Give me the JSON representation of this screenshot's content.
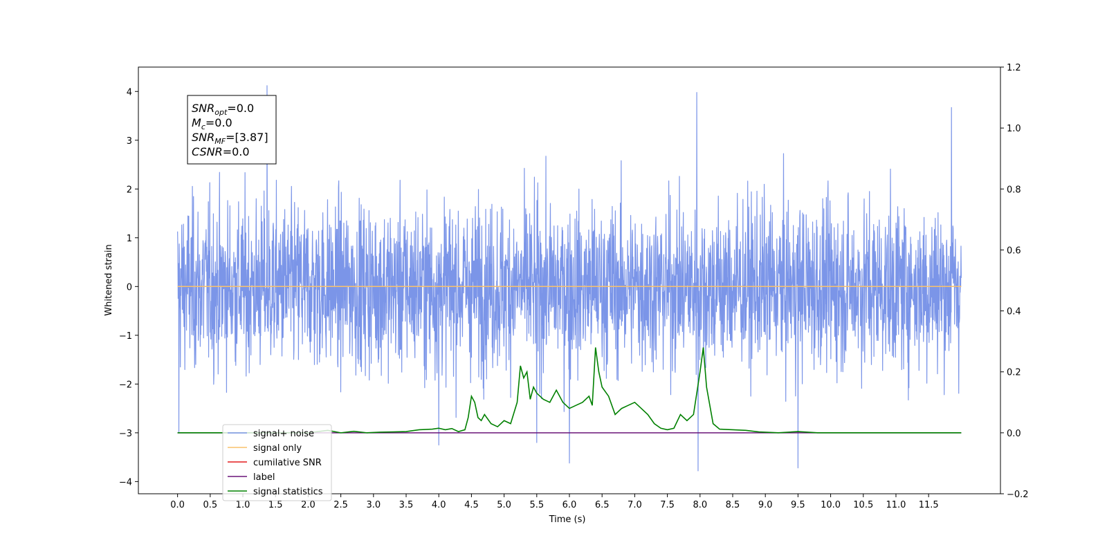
{
  "chart_data": {
    "type": "line",
    "title": "",
    "xlabel": "Time (s)",
    "ylabel": "Whitened strain",
    "xlim": [
      -0.6,
      12.6
    ],
    "ylim": [
      -4.25,
      4.5
    ],
    "y2lim": [
      -0.2,
      1.2
    ],
    "x_ticks": [
      0.0,
      0.5,
      1.0,
      1.5,
      2.0,
      2.5,
      3.0,
      3.5,
      4.0,
      4.5,
      5.0,
      5.5,
      6.0,
      6.5,
      7.0,
      7.5,
      8.0,
      8.5,
      9.0,
      9.5,
      10.0,
      10.5,
      11.0,
      11.5
    ],
    "x_tick_labels": [
      "0.0",
      "0.5",
      "1.0",
      "1.5",
      "2.0",
      "2.5",
      "3.0",
      "3.5",
      "4.0",
      "4.5",
      "5.0",
      "5.5",
      "6.0",
      "6.5",
      "7.0",
      "7.5",
      "8.0",
      "8.5",
      "9.0",
      "9.5",
      "10.0",
      "10.5",
      "11.0",
      "11.5"
    ],
    "y_ticks": [
      -4,
      -3,
      -2,
      -1,
      0,
      1,
      2,
      3,
      4
    ],
    "y_tick_labels": [
      "−4",
      "−3",
      "−2",
      "−1",
      "0",
      "1",
      "2",
      "3",
      "4"
    ],
    "y2_ticks": [
      -0.2,
      0.0,
      0.2,
      0.4,
      0.6,
      0.8,
      1.0,
      1.2
    ],
    "y2_tick_labels": [
      "−0.2",
      "0.0",
      "0.2",
      "0.4",
      "0.6",
      "0.8",
      "1.0",
      "1.2"
    ],
    "grid": false,
    "legend_position": "lower-left",
    "noise_series": {
      "name": "signal+ noise",
      "color": "#7b95e8",
      "x_range": [
        0.0,
        12.0
      ],
      "approx_sigma": 0.85,
      "notable_spikes": [
        {
          "x": 1.37,
          "y": 4.12
        },
        {
          "x": 7.95,
          "y": 3.98
        },
        {
          "x": 11.85,
          "y": 3.67
        },
        {
          "x": 6.0,
          "y": -3.62
        },
        {
          "x": 7.97,
          "y": -3.78
        },
        {
          "x": 9.5,
          "y": -3.72
        },
        {
          "x": 0.02,
          "y": -2.98
        },
        {
          "x": 4.0,
          "y": -3.25
        },
        {
          "x": 5.5,
          "y": -3.2
        }
      ]
    },
    "series": [
      {
        "name": "signal only",
        "color": "#f9c26c",
        "axis": "left",
        "x": [
          0.0,
          12.0
        ],
        "y": [
          0.0,
          0.0
        ]
      },
      {
        "name": "cumilative SNR",
        "color": "#e41a1c",
        "axis": "right",
        "x": [],
        "y": []
      },
      {
        "name": "label",
        "color": "#6a1478",
        "axis": "right",
        "x": [
          0.0,
          12.0
        ],
        "y": [
          0.0,
          0.0
        ]
      },
      {
        "name": "signal statistics",
        "color": "#008000",
        "axis": "right",
        "x": [
          0.0,
          2.0,
          2.3,
          2.5,
          2.7,
          2.9,
          3.1,
          3.3,
          3.5,
          3.7,
          3.9,
          4.0,
          4.1,
          4.2,
          4.3,
          4.4,
          4.45,
          4.5,
          4.55,
          4.6,
          4.65,
          4.7,
          4.8,
          4.9,
          5.0,
          5.1,
          5.2,
          5.25,
          5.3,
          5.35,
          5.4,
          5.45,
          5.5,
          5.55,
          5.6,
          5.7,
          5.8,
          5.9,
          6.0,
          6.1,
          6.2,
          6.3,
          6.35,
          6.4,
          6.45,
          6.5,
          6.6,
          6.7,
          6.8,
          6.9,
          7.0,
          7.1,
          7.2,
          7.3,
          7.4,
          7.5,
          7.6,
          7.7,
          7.8,
          7.9,
          8.0,
          8.05,
          8.1,
          8.2,
          8.3,
          8.5,
          8.7,
          8.9,
          9.2,
          9.5,
          9.8,
          10.0,
          12.0
        ],
        "y": [
          0.0,
          0.0,
          0.008,
          0.0,
          0.005,
          0.0,
          0.002,
          0.003,
          0.004,
          0.01,
          0.012,
          0.015,
          0.01,
          0.014,
          0.004,
          0.01,
          0.05,
          0.12,
          0.1,
          0.05,
          0.04,
          0.06,
          0.03,
          0.02,
          0.04,
          0.03,
          0.1,
          0.22,
          0.18,
          0.2,
          0.11,
          0.15,
          0.13,
          0.12,
          0.11,
          0.1,
          0.14,
          0.1,
          0.08,
          0.09,
          0.1,
          0.12,
          0.09,
          0.28,
          0.2,
          0.15,
          0.12,
          0.06,
          0.08,
          0.09,
          0.1,
          0.08,
          0.06,
          0.03,
          0.015,
          0.01,
          0.015,
          0.06,
          0.04,
          0.06,
          0.2,
          0.28,
          0.15,
          0.03,
          0.012,
          0.01,
          0.008,
          0.003,
          0.0,
          0.004,
          0.0,
          0.0,
          0.0
        ]
      }
    ],
    "legend": [
      {
        "label": "signal+ noise",
        "color": "#7b95e8"
      },
      {
        "label": "signal only",
        "color": "#f9c26c"
      },
      {
        "label": "cumilative SNR",
        "color": "#e41a1c"
      },
      {
        "label": "label",
        "color": "#6a1478"
      },
      {
        "label": "signal statistics",
        "color": "#008000"
      }
    ],
    "annotation": [
      {
        "name": "SNR",
        "sub": "opt",
        "value": "=0.0"
      },
      {
        "name": "M",
        "sub": "c",
        "value": "=0.0"
      },
      {
        "name": "SNR",
        "sub": "MF",
        "value": "=[3.87]"
      },
      {
        "name": "CSNR",
        "sub": "",
        "value": "=0.0"
      }
    ]
  }
}
